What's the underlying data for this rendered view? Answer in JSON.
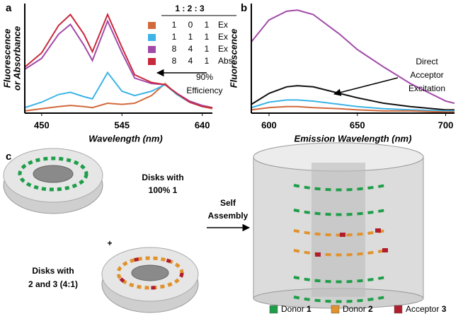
{
  "chart_data": [
    {
      "type": "line",
      "panel": "a",
      "y_label": [
        "Fluorescence",
        "or Absorbance"
      ],
      "x_label": "Wavelength (nm)",
      "xlim": [
        430,
        652
      ],
      "ylim": [
        0,
        1
      ],
      "xticks": [
        450,
        545,
        640
      ],
      "x": [
        430,
        450,
        470,
        484,
        500,
        510,
        528,
        545,
        560,
        580,
        596,
        610,
        625,
        640,
        652
      ],
      "legend_header": "1 : 2 : 3",
      "series": [
        {
          "color": "#d2693c",
          "ratio": [
            1,
            0,
            1
          ],
          "mode": "Ex",
          "values": [
            0.02,
            0.04,
            0.06,
            0.07,
            0.06,
            0.05,
            0.09,
            0.08,
            0.09,
            0.16,
            0.27,
            0.17,
            0.1,
            0.06,
            0.04
          ]
        },
        {
          "color": "#3cb4e6",
          "ratio": [
            1,
            1,
            1
          ],
          "mode": "Ex",
          "values": [
            0.05,
            0.1,
            0.17,
            0.19,
            0.15,
            0.13,
            0.37,
            0.2,
            0.16,
            0.2,
            0.26,
            0.17,
            0.1,
            0.06,
            0.05
          ]
        },
        {
          "color": "#a24aa8",
          "ratio": [
            8,
            4,
            1
          ],
          "mode": "Ex",
          "values": [
            0.4,
            0.5,
            0.72,
            0.81,
            0.62,
            0.48,
            0.84,
            0.55,
            0.32,
            0.27,
            0.26,
            0.18,
            0.11,
            0.07,
            0.05
          ]
        },
        {
          "color": "#c8283c",
          "ratio": [
            8,
            4,
            1
          ],
          "mode": "Abs",
          "values": [
            0.42,
            0.55,
            0.8,
            0.9,
            0.72,
            0.56,
            0.9,
            0.6,
            0.35,
            0.28,
            0.26,
            0.18,
            0.1,
            0.06,
            0.05
          ]
        }
      ],
      "annotation": {
        "lines": [
          "90%",
          "Efficiency"
        ]
      }
    },
    {
      "type": "line",
      "panel": "b",
      "y_label": [
        "Fluorescence"
      ],
      "x_label": "Emission Wavelength (nm)",
      "xlim": [
        590,
        705
      ],
      "ylim": [
        0,
        1
      ],
      "xticks": [
        600,
        650,
        700
      ],
      "x": [
        590,
        600,
        610,
        616,
        625,
        640,
        650,
        665,
        680,
        700,
        705
      ],
      "series": [
        {
          "color": "#a24aa8",
          "values": [
            0.65,
            0.85,
            0.93,
            0.94,
            0.9,
            0.72,
            0.58,
            0.42,
            0.27,
            0.11,
            0.09
          ]
        },
        {
          "color": "#111111",
          "values": [
            0.08,
            0.18,
            0.24,
            0.25,
            0.24,
            0.18,
            0.14,
            0.09,
            0.06,
            0.03,
            0.03
          ]
        },
        {
          "color": "#3cb4e6",
          "values": [
            0.05,
            0.1,
            0.12,
            0.12,
            0.11,
            0.08,
            0.06,
            0.04,
            0.03,
            0.02,
            0.02
          ]
        },
        {
          "color": "#d2693c",
          "values": [
            0.03,
            0.05,
            0.06,
            0.06,
            0.05,
            0.04,
            0.03,
            0.02,
            0.02,
            0.01,
            0.01
          ]
        }
      ],
      "annotation": {
        "lines": [
          "Direct",
          "Acceptor",
          "Excitation"
        ]
      }
    }
  ],
  "panel_c": {
    "panel": "c",
    "disk1": [
      "Disks with",
      "100% 1"
    ],
    "plus": "+",
    "disk2": [
      "Disks with",
      "2 and 3 (4:1)"
    ],
    "arrow": [
      "Self",
      "Assembly"
    ],
    "legend": [
      {
        "label": "Donor",
        "number": "1",
        "color": "#1e9e48"
      },
      {
        "label": "Donor",
        "number": "2",
        "color": "#e0922c"
      },
      {
        "label": "Acceptor",
        "number": "3",
        "color": "#b01e2e"
      }
    ]
  }
}
